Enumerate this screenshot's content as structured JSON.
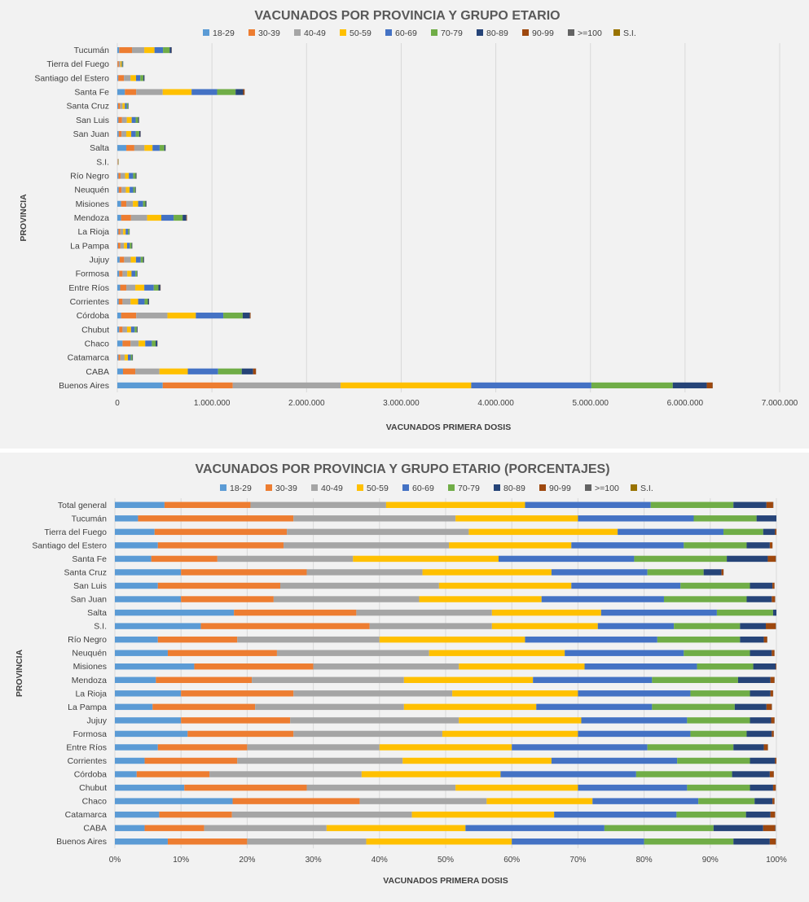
{
  "chart_data": [
    {
      "type": "bar",
      "orientation": "horizontal",
      "stacked": true,
      "title": "VACUNADOS POR PROVINCIA Y GRUPO ETARIO",
      "xlabel": "VACUNADOS PRIMERA  DOSIS",
      "ylabel": "PROVINCIA",
      "xlim": [
        0,
        7000000
      ],
      "xticks": [
        "0",
        "1.000.000",
        "2.000.000",
        "3.000.000",
        "4.000.000",
        "5.000.000",
        "6.000.000",
        "7.000.000"
      ],
      "legend_position": "top",
      "grid": true,
      "categories": [
        "Tucumán",
        "Tierra del Fuego",
        "Santiago del Estero",
        "Santa Fe",
        "Santa Cruz",
        "San Luis",
        "San Juan",
        "Salta",
        "S.I.",
        "Río Negro",
        "Neuquén",
        "Misiones",
        "Mendoza",
        "La Rioja",
        "La Pampa",
        "Jujuy",
        "Formosa",
        "Entre Ríos",
        "Corrientes",
        "Córdoba",
        "Chubut",
        "Chaco",
        "Catamarca",
        "CABA",
        "Buenos Aires"
      ],
      "series": [
        {
          "name": "18-29",
          "values": [
            20000,
            2000,
            10000,
            80000,
            9000,
            12000,
            15000,
            95000,
            1500,
            12000,
            15000,
            40000,
            40000,
            12000,
            8000,
            25000,
            20000,
            30000,
            15000,
            40000,
            20000,
            55000,
            12000,
            60000,
            480000
          ]
        },
        {
          "name": "30-39",
          "values": [
            135000,
            14000,
            60000,
            120000,
            20000,
            38000,
            30000,
            85000,
            4500,
            22000,
            30000,
            55000,
            105000,
            20000,
            25000,
            47000,
            35000,
            65000,
            40000,
            160000,
            35000,
            85000,
            20000,
            130000,
            740000
          ]
        },
        {
          "name": "40-49",
          "values": [
            130000,
            17000,
            70000,
            280000,
            26000,
            50000,
            50000,
            107000,
            3300,
            48000,
            45000,
            70000,
            170000,
            30000,
            37000,
            70000,
            50000,
            95000,
            85000,
            330000,
            48000,
            85000,
            45000,
            255000,
            1140000
          ]
        },
        {
          "name": "50-59",
          "values": [
            108000,
            14000,
            58000,
            305000,
            25000,
            52000,
            52000,
            85000,
            2900,
            40000,
            40000,
            55000,
            150000,
            26000,
            33000,
            55000,
            45000,
            95000,
            80000,
            300000,
            42000,
            70000,
            35000,
            300000,
            1380000
          ]
        },
        {
          "name": "60-69",
          "values": [
            90000,
            9000,
            45000,
            270000,
            20000,
            42000,
            48000,
            75000,
            2000,
            45000,
            38000,
            52000,
            130000,
            25000,
            28000,
            50000,
            40000,
            100000,
            68000,
            290000,
            38000,
            70000,
            30000,
            320000,
            1270000
          ]
        },
        {
          "name": "70-79",
          "values": [
            70000,
            4000,
            32000,
            195000,
            12000,
            26000,
            36000,
            50000,
            1200,
            27000,
            20000,
            25000,
            95000,
            13000,
            20000,
            25000,
            18000,
            50000,
            35000,
            205000,
            22000,
            40000,
            16000,
            250000,
            860000
          ]
        },
        {
          "name": "80-89",
          "values": [
            20000,
            2000,
            12000,
            80000,
            5000,
            9000,
            14000,
            12000,
            500,
            8000,
            7000,
            10000,
            40000,
            4000,
            7000,
            10000,
            5000,
            20000,
            12000,
            75000,
            8000,
            18000,
            6000,
            120000,
            360000
          ]
        },
        {
          "name": "90-99",
          "values": [
            2000,
            200,
            1000,
            15000,
            500,
            900,
            1500,
            1500,
            100,
            1200,
            800,
            800,
            6000,
            400,
            1000,
            1200,
            500,
            2500,
            1000,
            8000,
            1200,
            2000,
            500,
            30000,
            60000
          ]
        },
        {
          "name": ">=100",
          "values": [
            100,
            10,
            50,
            800,
            20,
            40,
            80,
            80,
            5,
            60,
            40,
            40,
            300,
            20,
            50,
            60,
            30,
            150,
            50,
            400,
            60,
            100,
            30,
            1500,
            3000
          ]
        },
        {
          "name": "S.I.",
          "values": [
            0,
            0,
            0,
            0,
            0,
            0,
            0,
            0,
            0,
            0,
            0,
            0,
            0,
            0,
            0,
            0,
            0,
            0,
            0,
            0,
            0,
            0,
            0,
            0,
            0
          ]
        }
      ]
    },
    {
      "type": "bar",
      "orientation": "horizontal",
      "stacked": true,
      "percent": true,
      "title": "VACUNADOS POR PROVINCIA Y GRUPO ETARIO (PORCENTAJES)",
      "xlabel": "VACUNADOS PRIMERA  DOSIS",
      "ylabel": "PROVINCIA",
      "xlim": [
        0,
        100
      ],
      "xticks": [
        "0%",
        "10%",
        "20%",
        "30%",
        "40%",
        "50%",
        "60%",
        "70%",
        "80%",
        "90%",
        "100%"
      ],
      "legend_position": "top",
      "grid": true,
      "categories": [
        "Total general",
        "Tucumán",
        "Tierra del Fuego",
        "Santiago del Estero",
        "Santa Fe",
        "Santa Cruz",
        "San Luis",
        "San Juan",
        "Salta",
        "S.I.",
        "Río Negro",
        "Neuquén",
        "Misiones",
        "Mendoza",
        "La Rioja",
        "La Pampa",
        "Jujuy",
        "Formosa",
        "Entre Ríos",
        "Corrientes",
        "Córdoba",
        "Chubut",
        "Chaco",
        "Catamarca",
        "CABA",
        "Buenos Aires"
      ],
      "series": [
        {
          "name": "18-29",
          "values": [
            7.5,
            3.5,
            6,
            6.5,
            5.5,
            10,
            6.5,
            10,
            18,
            13,
            6.5,
            8,
            12,
            6.2,
            10,
            5.7,
            10,
            11,
            6.5,
            4.5,
            3.3,
            10.5,
            17.8,
            6.7,
            4.5,
            8
          ]
        },
        {
          "name": "30-39",
          "values": [
            13,
            23.5,
            20,
            19,
            10,
            19,
            18.5,
            14,
            18.5,
            25.5,
            12,
            16.5,
            18,
            14.5,
            17,
            15.5,
            16.5,
            16,
            13.5,
            14,
            11,
            18.5,
            19.2,
            11,
            9,
            12
          ]
        },
        {
          "name": "40-49",
          "values": [
            20.5,
            24.5,
            27.5,
            25,
            20.5,
            17.5,
            24,
            22,
            20.5,
            18.5,
            21.5,
            23,
            22,
            23,
            24,
            22.5,
            25.5,
            22.5,
            20,
            25,
            23,
            22.5,
            19.2,
            27.2,
            18.5,
            18
          ]
        },
        {
          "name": "50-59",
          "values": [
            21,
            18.5,
            22.5,
            18.5,
            22,
            19.5,
            20,
            18.5,
            16.5,
            16,
            22,
            20.5,
            19,
            19.5,
            19,
            20,
            18.5,
            20.5,
            20,
            22.5,
            21,
            18.5,
            16,
            21.5,
            21,
            22
          ]
        },
        {
          "name": "60-69",
          "values": [
            19,
            17.5,
            16,
            17,
            20.5,
            14.5,
            16.5,
            18.5,
            17.5,
            11.5,
            20,
            18,
            17,
            18,
            17,
            17.5,
            16,
            17,
            20.5,
            19,
            20.5,
            16.5,
            16,
            18.5,
            21,
            20
          ]
        },
        {
          "name": "70-79",
          "values": [
            12.5,
            9.5,
            6,
            9.5,
            14,
            8.5,
            10.5,
            12.5,
            8.5,
            10,
            12.5,
            10,
            8.5,
            13,
            9,
            12.5,
            9.5,
            8.5,
            13,
            11,
            14.5,
            9.5,
            8.5,
            10.5,
            16.5,
            13.5
          ]
        },
        {
          "name": "80-89",
          "values": [
            5,
            3.3,
            1.8,
            3.5,
            6.2,
            2.7,
            3.4,
            3.8,
            3.1,
            3.9,
            3.6,
            3.3,
            3.4,
            4.9,
            3.1,
            4.8,
            3.2,
            3.8,
            4.6,
            3.8,
            5.7,
            3.5,
            2.7,
            3.7,
            7.5,
            5.5
          ]
        },
        {
          "name": "90-99",
          "values": [
            1,
            0.6,
            0.2,
            0.4,
            1.2,
            0.3,
            0.3,
            0.5,
            0.4,
            1.5,
            0.5,
            0.4,
            0.3,
            0.6,
            0.4,
            0.8,
            0.5,
            0.3,
            0.6,
            0.4,
            0.6,
            0.4,
            0.3,
            0.7,
            1.8,
            0.9
          ]
        },
        {
          "name": ">=100",
          "values": [
            0.05,
            0.03,
            0.01,
            0.02,
            0.05,
            0.02,
            0.02,
            0.03,
            0.02,
            0.05,
            0.03,
            0.02,
            0.02,
            0.03,
            0.02,
            0.04,
            0.03,
            0.02,
            0.03,
            0.02,
            0.03,
            0.03,
            0.02,
            0.03,
            0.1,
            0.05
          ]
        },
        {
          "name": "S.I.",
          "values": [
            0,
            0,
            0,
            0,
            0,
            0,
            0,
            0,
            0,
            0,
            0,
            0,
            0,
            0,
            0,
            0,
            0,
            0,
            0,
            0,
            0,
            0,
            0,
            0,
            0,
            0
          ]
        }
      ]
    }
  ],
  "colors": {
    "18-29": "#5b9bd5",
    "30-39": "#ed7d31",
    "40-49": "#a5a5a5",
    "50-59": "#ffc000",
    "60-69": "#4472c4",
    "70-79": "#70ad47",
    "80-89": "#264478",
    "90-99": "#9e480e",
    ">=100": "#636363",
    "S.I.": "#997300"
  }
}
